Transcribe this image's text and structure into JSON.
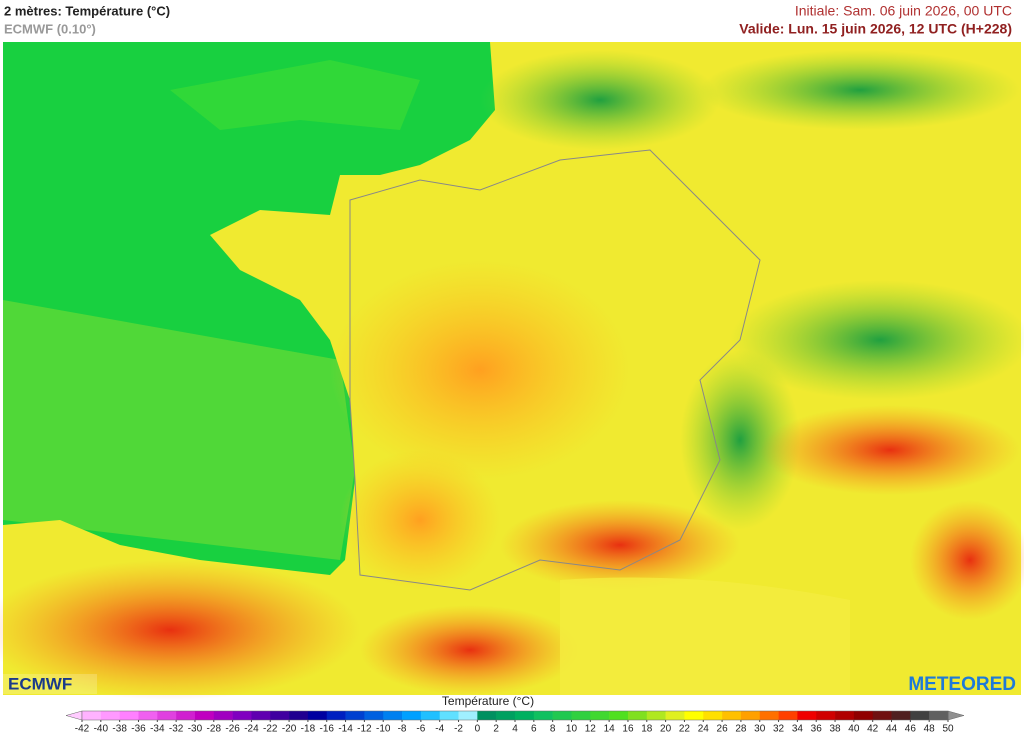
{
  "header": {
    "title": "2 mètres: Température (°C)",
    "subtitle": "ECMWF (0.10°)",
    "initial": "Initiale: Sam. 06 juin 2026, 00 UTC",
    "valid": "Valide: Lun. 15 juin 2026, 12 UTC (H+228)"
  },
  "logos": {
    "left": "ECMWF",
    "right": "METEORED"
  },
  "legend": {
    "title": "Température (°C)",
    "ticks": [
      -42,
      -40,
      -38,
      -36,
      -34,
      -32,
      -30,
      -28,
      -26,
      -24,
      -22,
      -20,
      -18,
      -16,
      -14,
      -12,
      -10,
      -8,
      -6,
      -4,
      -2,
      0,
      2,
      4,
      6,
      8,
      10,
      12,
      14,
      16,
      18,
      20,
      22,
      24,
      26,
      28,
      30,
      32,
      34,
      36,
      38,
      40,
      42,
      44,
      46,
      48,
      50
    ],
    "colors": [
      "#ffccff",
      "#ffb3ff",
      "#ff99ff",
      "#ff80ff",
      "#f060f0",
      "#e040e0",
      "#d020d0",
      "#c000c0",
      "#a000c0",
      "#8000c0",
      "#6000b0",
      "#4000a0",
      "#200090",
      "#0000a0",
      "#0020c0",
      "#0040d0",
      "#0060e0",
      "#0080f0",
      "#00a0ff",
      "#20c0ff",
      "#60e0ff",
      "#a0f0ff",
      "#009060",
      "#00a060",
      "#00b060",
      "#10c060",
      "#20c850",
      "#30d040",
      "#40d830",
      "#50e020",
      "#80e020",
      "#b0e820",
      "#e0f020",
      "#ffff00",
      "#ffe000",
      "#ffc000",
      "#ffa000",
      "#ff7000",
      "#ff4000",
      "#f00000",
      "#d00000",
      "#b00000",
      "#900000",
      "#701010",
      "#502020",
      "#404040",
      "#606060",
      "#909090"
    ]
  }
}
